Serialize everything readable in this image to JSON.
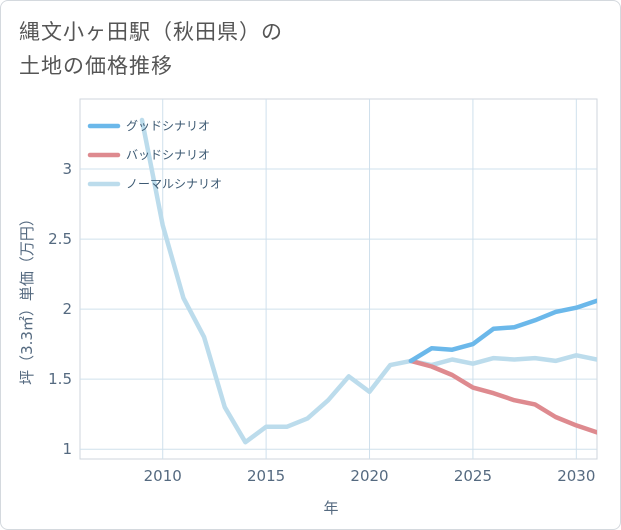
{
  "title": {
    "line1": "縄文小ヶ田駅（秋田県）の",
    "line2": "土地の価格推移"
  },
  "chart_data": {
    "type": "line",
    "xlabel": "年",
    "ylabel": "坪（3.3㎡）単価（万円）",
    "xlim": [
      2006,
      2031
    ],
    "ylim": [
      0.93,
      3.5
    ],
    "xticks": [
      2010,
      2015,
      2020,
      2025,
      2030
    ],
    "yticks": [
      1,
      1.5,
      2,
      2.5,
      3
    ],
    "ytick_labels": [
      "1",
      "1.5",
      "2",
      "2.5",
      "3"
    ],
    "grid": true,
    "legend_position": "top-left",
    "series": [
      {
        "name": "グッドシナリオ",
        "color": "#6bb8ea",
        "x": [
          2022,
          2023,
          2024,
          2025,
          2026,
          2027,
          2028,
          2029,
          2030,
          2031
        ],
        "y": [
          1.63,
          1.72,
          1.71,
          1.75,
          1.86,
          1.87,
          1.92,
          1.98,
          2.01,
          2.06
        ]
      },
      {
        "name": "バッドシナリオ",
        "color": "#de8a8f",
        "x": [
          2022,
          2023,
          2024,
          2025,
          2026,
          2027,
          2028,
          2029,
          2030,
          2031
        ],
        "y": [
          1.63,
          1.59,
          1.53,
          1.44,
          1.4,
          1.35,
          1.32,
          1.23,
          1.17,
          1.12
        ]
      },
      {
        "name": "ノーマルシナリオ",
        "color": "#bcdcec",
        "x": [
          2009,
          2010,
          2011,
          2012,
          2013,
          2014,
          2015,
          2016,
          2017,
          2018,
          2019,
          2020,
          2021,
          2022,
          2023,
          2024,
          2025,
          2026,
          2027,
          2028,
          2029,
          2030,
          2031
        ],
        "y": [
          3.35,
          2.6,
          2.08,
          1.8,
          1.3,
          1.05,
          1.16,
          1.16,
          1.22,
          1.35,
          1.52,
          1.41,
          1.6,
          1.63,
          1.6,
          1.64,
          1.61,
          1.65,
          1.64,
          1.65,
          1.63,
          1.67,
          1.64
        ]
      }
    ]
  }
}
